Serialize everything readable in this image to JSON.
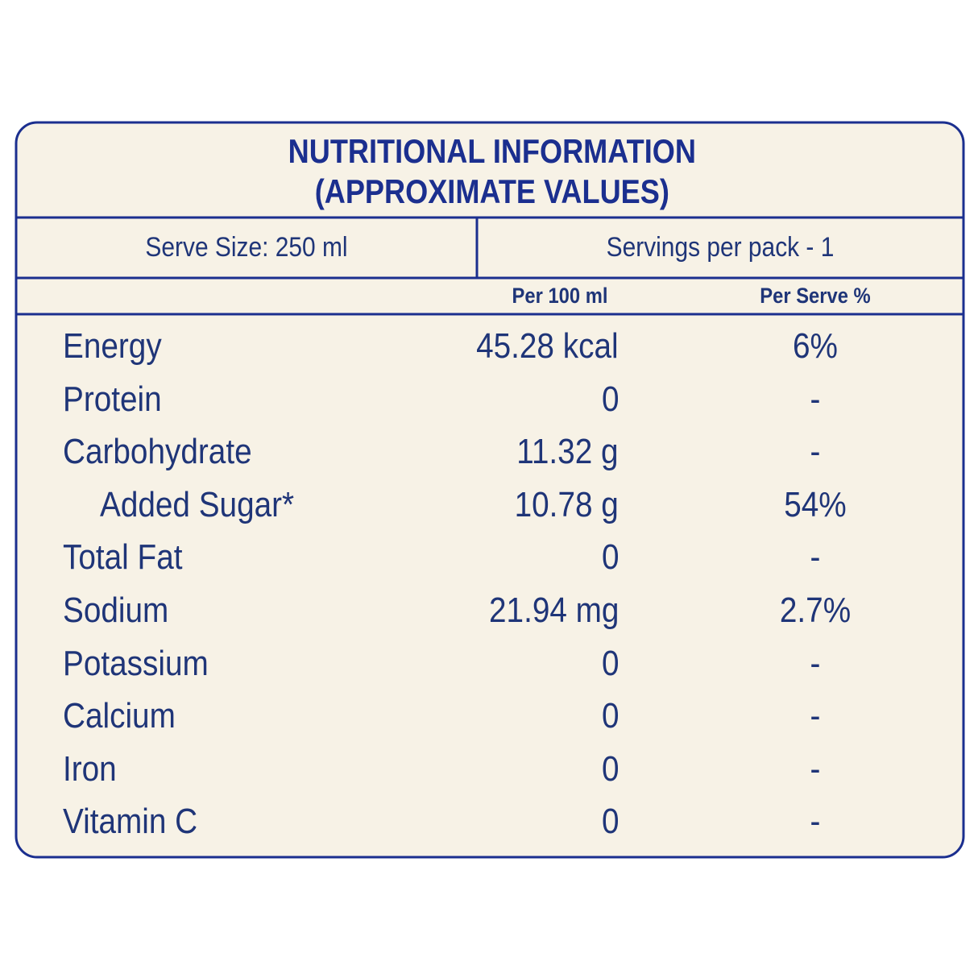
{
  "title": [
    "NUTRITIONAL INFORMATION",
    "(APPROXIMATE VALUES)"
  ],
  "serve_size": "Serve Size: 250 ml",
  "servings": "Servings per pack - 1",
  "columns": [
    "Per 100 ml",
    "Per Serve %"
  ],
  "rows": [
    {
      "name": "Energy",
      "per_100": "45.28 kcal",
      "per_serve": "6%"
    },
    {
      "name": "Protein",
      "per_100": "0",
      "per_serve": "-"
    },
    {
      "name": "Carbohydrate",
      "per_100": "11.32 g",
      "per_serve": "-"
    },
    {
      "name": "Added Sugar*",
      "per_100": "10.78 g",
      "per_serve": "54%",
      "indent": true
    },
    {
      "name": "Total Fat",
      "per_100": "0",
      "per_serve": "-"
    },
    {
      "name": "Sodium",
      "per_100": "21.94 mg",
      "per_serve": "2.7%"
    },
    {
      "name": "Potassium",
      "per_100": "0",
      "per_serve": "-"
    },
    {
      "name": "Calcium",
      "per_100": "0",
      "per_serve": "-"
    },
    {
      "name": "Iron",
      "per_100": "0",
      "per_serve": "-"
    },
    {
      "name": "Vitamin C",
      "per_100": "0",
      "per_serve": "-"
    }
  ]
}
